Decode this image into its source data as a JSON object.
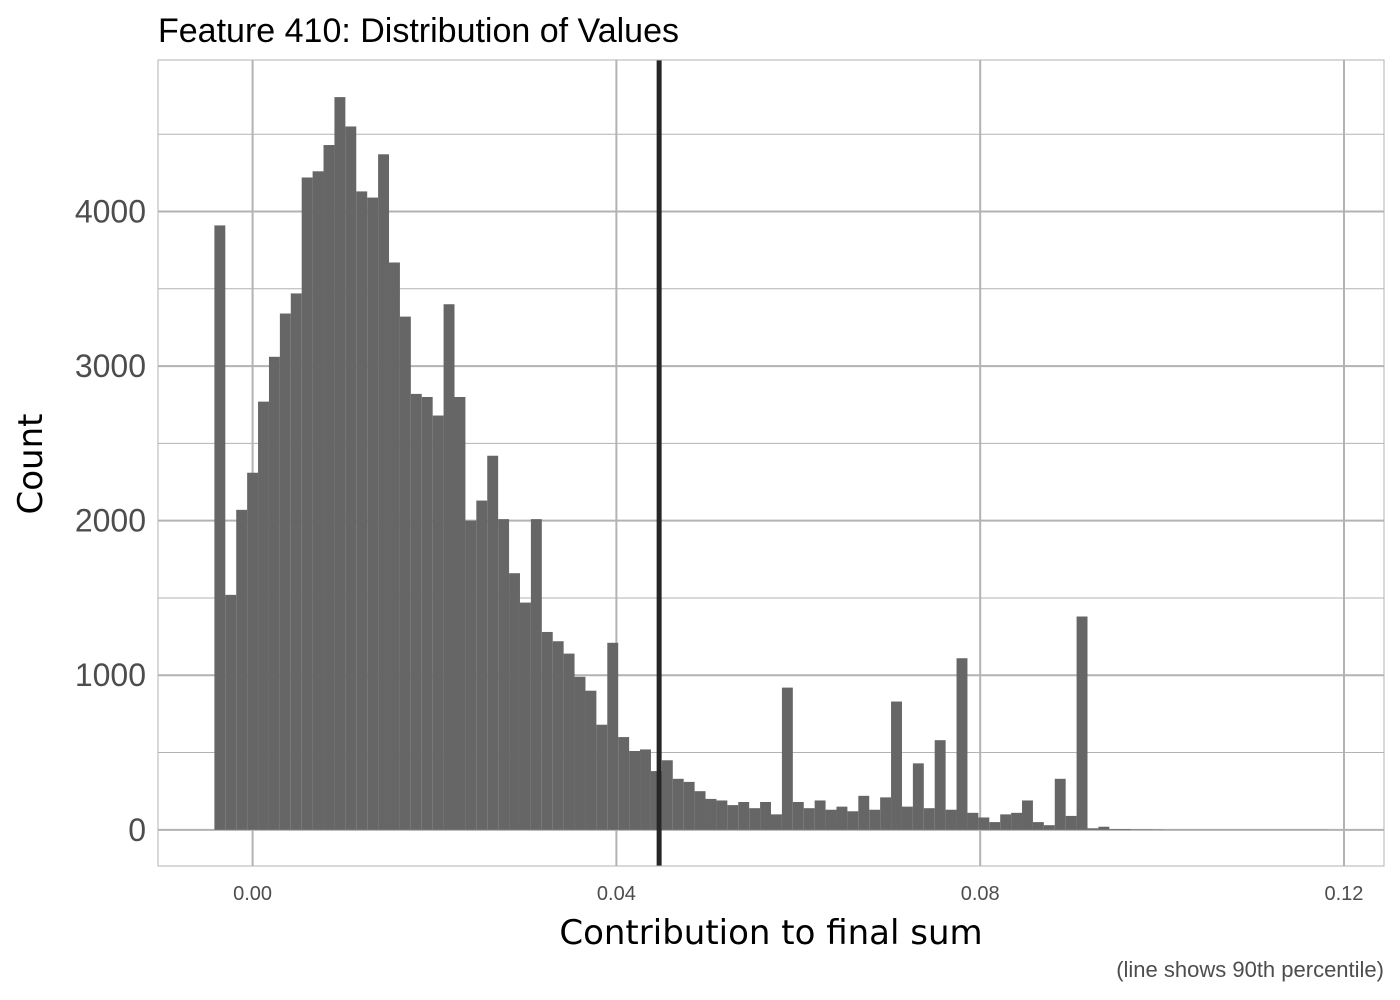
{
  "chart_data": {
    "type": "bar",
    "title": "Feature 410: Distribution of Values",
    "xlabel": "Contribution to final sum",
    "ylabel": "Count",
    "caption": "(line shows 90th percentile)",
    "xlim": [
      -0.0104,
      0.1244
    ],
    "ylim": [
      -234,
      4980
    ],
    "x_ticks": [
      0.0,
      0.04,
      0.08,
      0.12
    ],
    "x_tick_labels": [
      "0.00",
      "0.04",
      "0.08",
      "0.12"
    ],
    "y_ticks": [
      0,
      1000,
      2000,
      3000,
      4000
    ],
    "y_tick_labels": [
      "0",
      "1000",
      "2000",
      "3000",
      "4000"
    ],
    "bin_width": 0.0012,
    "bin_start": -0.0042,
    "values": [
      3910,
      1520,
      2070,
      2310,
      2770,
      3060,
      3340,
      3470,
      4220,
      4260,
      4430,
      4740,
      4550,
      4130,
      4090,
      4370,
      3670,
      3320,
      2820,
      2800,
      2680,
      3400,
      2800,
      2000,
      2130,
      2420,
      2010,
      1660,
      1470,
      2010,
      1280,
      1220,
      1140,
      990,
      900,
      680,
      1210,
      600,
      510,
      520,
      380,
      450,
      330,
      310,
      250,
      200,
      190,
      160,
      180,
      140,
      180,
      100,
      920,
      180,
      140,
      190,
      130,
      150,
      120,
      220,
      130,
      210,
      830,
      150,
      430,
      140,
      580,
      130,
      1110,
      110,
      80,
      50,
      100,
      110,
      190,
      50,
      30,
      330,
      90,
      1380,
      10,
      20,
      5,
      5,
      3,
      3,
      2,
      1,
      1,
      1,
      1,
      1,
      1,
      1,
      1,
      1,
      1,
      1,
      1,
      1,
      1,
      1
    ],
    "bar_color": "#666666",
    "reference_line": {
      "x": 0.0447,
      "label": "90th percentile",
      "color": "#262626"
    },
    "grid": true,
    "legend": "none"
  }
}
